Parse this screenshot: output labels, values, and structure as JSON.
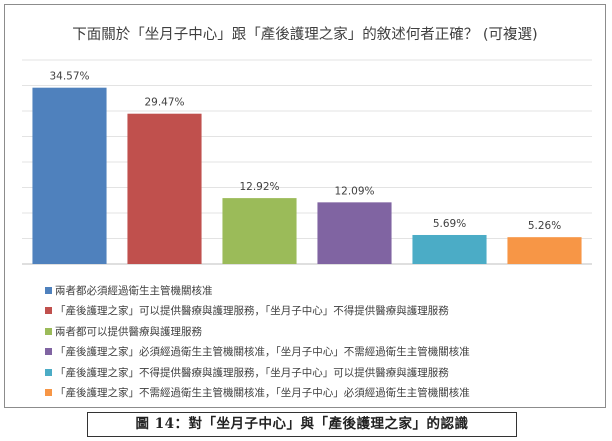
{
  "chart_data": {
    "type": "bar",
    "title": "下面關於「坐月子中心」跟「產後護理之家」的敘述何者正確？ (可複選)",
    "categories": [
      "兩者都必須經過衛生主管機關核准",
      "「產後護理之家」可以提供醫療與護理服務，「坐月子中心」不得提供醫療與護理服務",
      "兩者都可以提供醫療與護理服務",
      "「產後護理之家」必須經過衛生主管機關核准，「坐月子中心」不需經過衛生主管機關核准",
      "「產後護理之家」不得提供醫療與護理服務，「坐月子中心」可以提供醫療與護理服務",
      "「產後護理之家」不需經過衛生主管機關核准，「坐月子中心」必須經過衛生主管機關核准"
    ],
    "values": [
      34.57,
      29.47,
      12.92,
      12.09,
      5.69,
      5.26
    ],
    "data_labels": [
      "34.57%",
      "29.47%",
      "12.92%",
      "12.09%",
      "5.69%",
      "5.26%"
    ],
    "colors": [
      "#4f81bd",
      "#c0504d",
      "#9bbb59",
      "#8064a2",
      "#4bacc6",
      "#f79646"
    ],
    "ylim": [
      0,
      40
    ],
    "grid": true,
    "legend_position": "bottom"
  },
  "caption": "圖 14：對「坐月子中心」與「產後護理之家」的認識"
}
